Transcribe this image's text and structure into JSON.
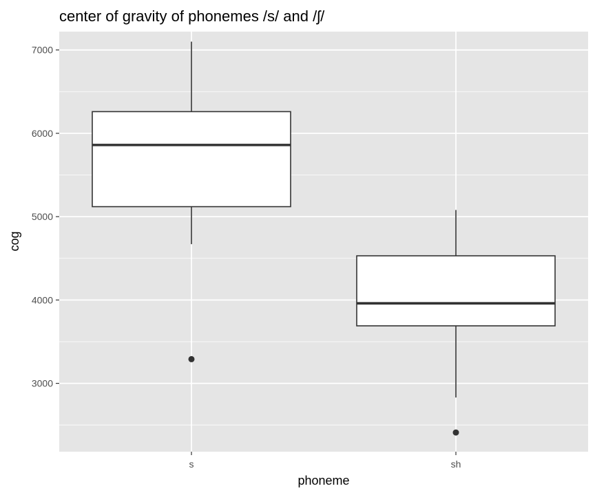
{
  "chart_data": {
    "type": "box",
    "title": "center of gravity of phonemes /s/ and /ʃ/",
    "xlabel": "phoneme",
    "ylabel": "cog",
    "categories": [
      "s",
      "sh"
    ],
    "ylim": [
      2180,
      7220
    ],
    "yticks": [
      3000,
      4000,
      5000,
      6000,
      7000
    ],
    "grid": true,
    "boxes": [
      {
        "category": "s",
        "whisker_low": 4670,
        "q1": 5120,
        "median": 5860,
        "q3": 6260,
        "whisker_high": 7100,
        "outliers": [
          3290
        ]
      },
      {
        "category": "sh",
        "whisker_low": 2830,
        "q1": 3690,
        "median": 3960,
        "q3": 4530,
        "whisker_high": 5080,
        "outliers": [
          2410
        ]
      }
    ],
    "colors": {
      "panel_background": "#e5e5e5",
      "grid": "#ffffff",
      "box_fill": "#ffffff",
      "box_line": "#333333",
      "tick_text": "#4d4d4d"
    }
  }
}
